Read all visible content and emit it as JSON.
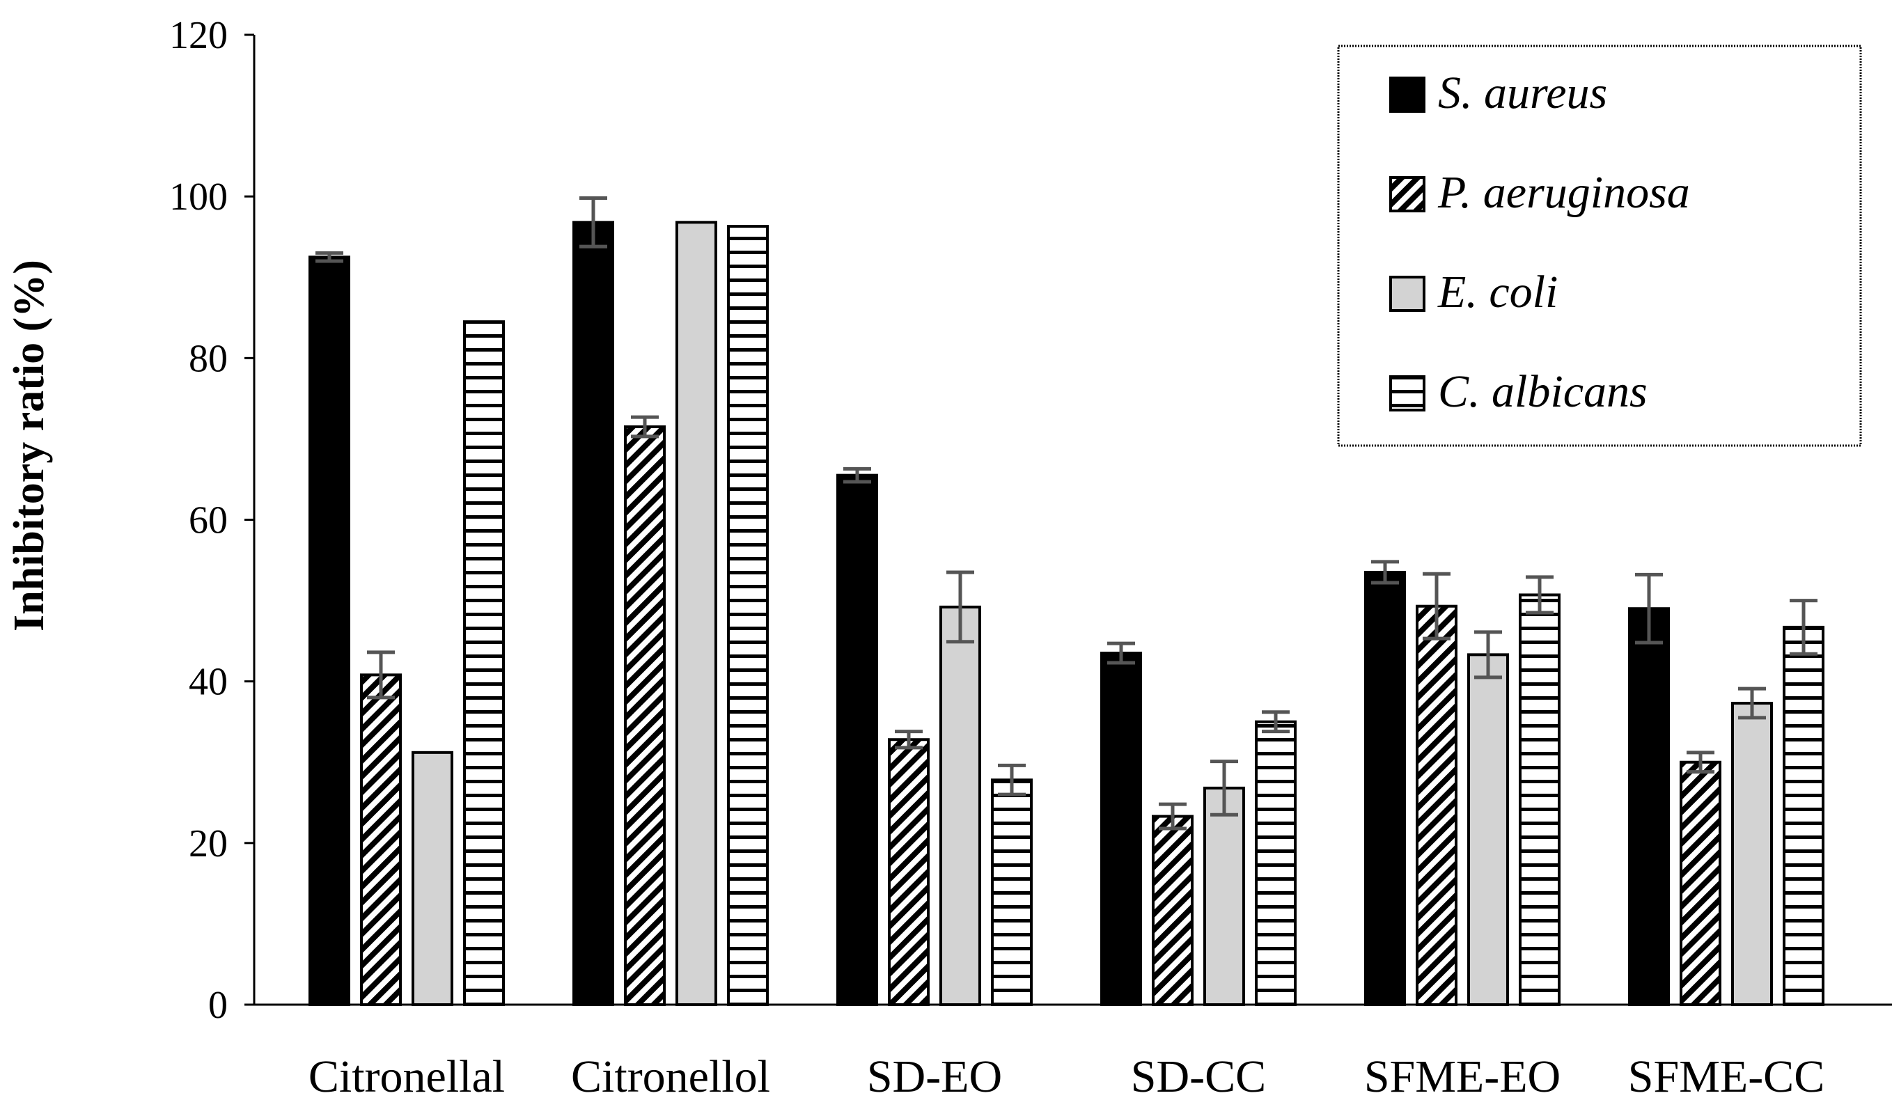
{
  "chart_data": {
    "type": "bar",
    "title": "",
    "xlabel": "",
    "ylabel": "Inhibitory ratio (%)",
    "ylim": [
      0,
      120
    ],
    "yticks": [
      0,
      20,
      40,
      60,
      80,
      100,
      120
    ],
    "grid": false,
    "legend_position": "top-right",
    "categories": [
      "Citronellal",
      "Citronellol",
      "SD-EO",
      "SD-CC",
      "SFME-EO",
      "SFME-CC"
    ],
    "series": [
      {
        "name": "S. aureus",
        "fill": "solid",
        "color": "#000000",
        "values": [
          92.5,
          96.8,
          65.5,
          43.5,
          53.5,
          49.0
        ],
        "errors": [
          0.5,
          3.0,
          0.8,
          1.2,
          1.3,
          4.2
        ]
      },
      {
        "name": "P. aeruginosa",
        "fill": "diagonal-hatch",
        "color": "#000000",
        "values": [
          40.8,
          71.5,
          32.8,
          23.3,
          49.3,
          30.0
        ],
        "errors": [
          2.8,
          1.2,
          1.0,
          1.5,
          4.0,
          1.2
        ]
      },
      {
        "name": "E. coli",
        "fill": "solid",
        "color": "#d3d3d3",
        "values": [
          31.2,
          96.8,
          49.2,
          26.8,
          43.3,
          37.3
        ],
        "errors": [
          0,
          0,
          4.3,
          3.3,
          2.8,
          1.8
        ]
      },
      {
        "name": "C. albicans",
        "fill": "horizontal-stripes",
        "color": "#000000",
        "values": [
          84.5,
          96.3,
          27.8,
          35.0,
          50.7,
          46.7
        ],
        "errors": [
          0,
          0,
          1.8,
          1.2,
          2.2,
          3.3
        ]
      }
    ]
  }
}
